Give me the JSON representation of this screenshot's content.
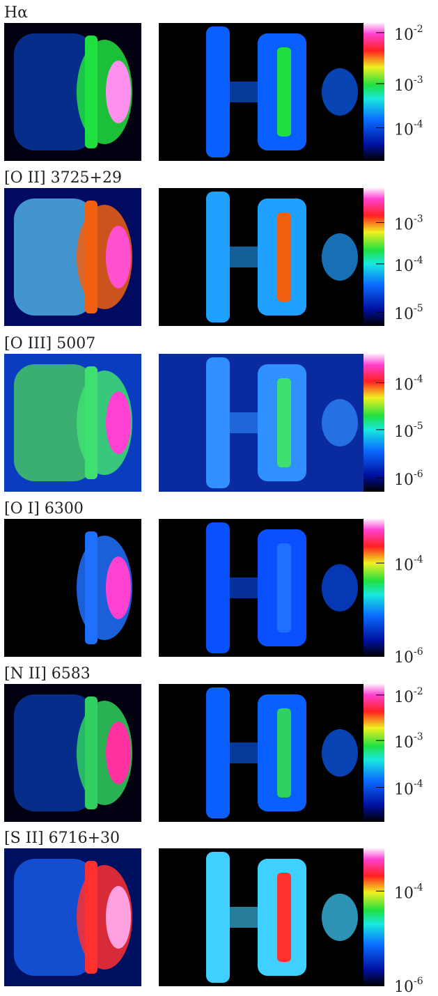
{
  "panels": [
    {
      "label": "Hα",
      "ticks": [
        {
          "base": "10",
          "exponent": "-2"
        },
        {
          "base": "10",
          "exponent": "-3"
        },
        {
          "base": "10",
          "exponent": "-4"
        }
      ]
    },
    {
      "label": "[O II] 3725+29",
      "ticks": [
        {
          "base": "10",
          "exponent": "-3"
        },
        {
          "base": "10",
          "exponent": "-4"
        },
        {
          "base": "10",
          "exponent": "-5"
        }
      ]
    },
    {
      "label": "[O III] 5007",
      "ticks": [
        {
          "base": "10",
          "exponent": "-4"
        },
        {
          "base": "10",
          "exponent": "-5"
        },
        {
          "base": "10",
          "exponent": "-6"
        }
      ]
    },
    {
      "label": "[O I] 6300",
      "ticks": [
        {
          "base": "10",
          "exponent": "-4"
        },
        {
          "base": "10",
          "exponent": "-6"
        }
      ]
    },
    {
      "label": "[N II] 6583",
      "ticks": [
        {
          "base": "10",
          "exponent": "-2"
        },
        {
          "base": "10",
          "exponent": "-3"
        },
        {
          "base": "10",
          "exponent": "-4"
        }
      ]
    },
    {
      "label": "[S II] 6716+30",
      "ticks": [
        {
          "base": "10",
          "exponent": "-4"
        },
        {
          "base": "10",
          "exponent": "-6"
        }
      ]
    }
  ]
}
